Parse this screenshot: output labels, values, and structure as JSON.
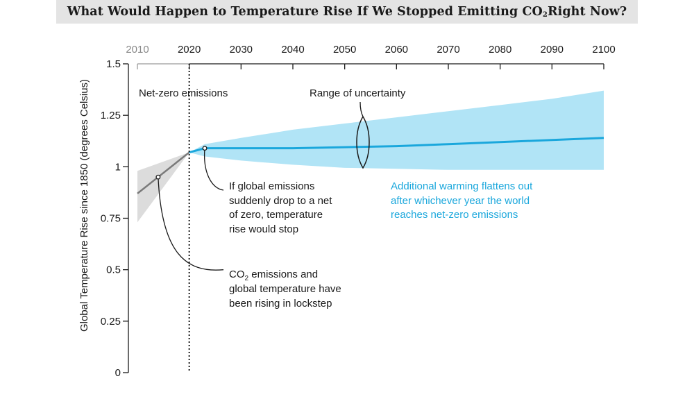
{
  "title": {
    "main": "What Would Happen to Temperature Rise If We Stopped Emitting CO",
    "sub": "2",
    "tail": " Right Now?"
  },
  "colors": {
    "blue": "#1aa7dc",
    "blue_band": "#b1e4f6",
    "gray_line": "#7a7a7a",
    "gray_band": "#dcdcdc",
    "axis": "#1a1a1a"
  },
  "annotations": {
    "net_zero": "Net-zero emissions",
    "uncertainty": "Range of uncertainty",
    "drop": [
      "If global emissions",
      "suddenly drop to a net",
      "of zero, temperature",
      "rise would stop"
    ],
    "flatten": [
      "Additional warming flattens out",
      "after whichever year the world",
      "reaches net-zero emissions"
    ],
    "lockstep": {
      "line1_pre": "CO",
      "line1_sub": "2",
      "line1_post": " emissions and",
      "line2": "global temperature have",
      "line3": "been rising in lockstep"
    }
  },
  "chart_data": {
    "type": "line",
    "title": "What Would Happen to Temperature Rise If We Stopped Emitting CO2 Right Now?",
    "ylabel": "Global Temperature Rise since 1850 (degrees Celsius)",
    "xlabel": "",
    "xlim": [
      2010,
      2100
    ],
    "ylim": [
      0,
      1.5
    ],
    "x_ticks": [
      "2010",
      "2020",
      "2030",
      "2040",
      "2050",
      "2060",
      "2070",
      "2080",
      "2090",
      "2100"
    ],
    "y_ticks": [
      "0",
      "0.25",
      "0.5",
      "0.75",
      "1",
      "1.25",
      "1.5"
    ],
    "y_tick_values": [
      0,
      0.25,
      0.5,
      0.75,
      1,
      1.25,
      1.5
    ],
    "net_zero_year": 2020,
    "historical": {
      "x": [
        2010,
        2020
      ],
      "y": [
        0.87,
        1.07
      ],
      "band_upper": [
        0.98,
        1.07
      ],
      "band_lower": [
        0.73,
        1.07
      ]
    },
    "projection": {
      "x": [
        2020,
        2023,
        2030,
        2040,
        2050,
        2060,
        2070,
        2080,
        2090,
        2100
      ],
      "y": [
        1.07,
        1.09,
        1.09,
        1.09,
        1.095,
        1.1,
        1.11,
        1.12,
        1.13,
        1.14
      ],
      "band_upper": [
        1.07,
        1.11,
        1.14,
        1.18,
        1.21,
        1.24,
        1.27,
        1.3,
        1.33,
        1.37
      ],
      "band_lower": [
        1.07,
        1.05,
        1.03,
        1.01,
        0.995,
        0.99,
        0.985,
        0.985,
        0.985,
        0.985
      ]
    },
    "markers": [
      {
        "name": "lockstep-marker",
        "x": 2014,
        "y": 0.95
      },
      {
        "name": "drop-marker",
        "x": 2023,
        "y": 1.09
      }
    ]
  }
}
